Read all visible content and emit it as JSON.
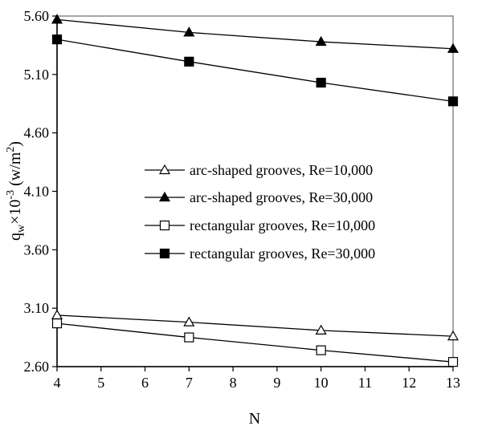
{
  "chart_data": {
    "type": "line",
    "title": "",
    "xlabel": "N",
    "ylabel": {
      "base": "q",
      "sub": "w",
      "mid": "×10",
      "sup": "-3",
      "unit_open": " (w/m",
      "unit_sup": "2",
      "unit_close": ")"
    },
    "xlim": [
      4,
      13
    ],
    "ylim": [
      2.6,
      5.6
    ],
    "x_ticks": [
      "4",
      "5",
      "6",
      "7",
      "8",
      "9",
      "10",
      "11",
      "12",
      "13"
    ],
    "y_ticks": [
      "2.60",
      "3.10",
      "3.60",
      "4.10",
      "4.60",
      "5.10",
      "5.60"
    ],
    "grid": false,
    "legend_position": "center-left",
    "colors": {
      "line": "#000000",
      "frame": "#888888",
      "axis": "#000000"
    },
    "series": [
      {
        "name": "arc-shaped grooves, Re=10,000",
        "marker": "triangle-open",
        "x": [
          4,
          7,
          10,
          13
        ],
        "y": [
          3.04,
          2.98,
          2.91,
          2.86
        ]
      },
      {
        "name": "arc-shaped grooves, Re=30,000",
        "marker": "triangle-filled",
        "x": [
          4,
          7,
          10,
          13
        ],
        "y": [
          5.57,
          5.46,
          5.38,
          5.32
        ]
      },
      {
        "name": "rectangular grooves, Re=10,000",
        "marker": "square-open",
        "x": [
          4,
          7,
          10,
          13
        ],
        "y": [
          2.97,
          2.85,
          2.74,
          2.64
        ]
      },
      {
        "name": "rectangular grooves, Re=30,000",
        "marker": "square-filled",
        "x": [
          4,
          7,
          10,
          13
        ],
        "y": [
          5.4,
          5.21,
          5.03,
          4.87
        ]
      }
    ]
  }
}
